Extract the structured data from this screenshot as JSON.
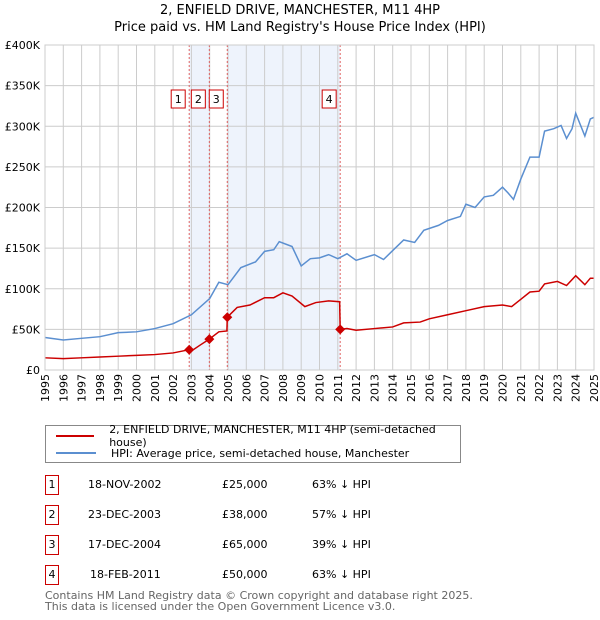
{
  "chart_data": {
    "type": "line",
    "title": "2, ENFIELD DRIVE, MANCHESTER, M11 4HP",
    "subtitle": "Price paid vs. HM Land Registry's House Price Index (HPI)",
    "ylim": [
      0,
      400000
    ],
    "xlim": [
      1995,
      2025
    ],
    "yticks": [
      {
        "v": 0,
        "label": "£0"
      },
      {
        "v": 50000,
        "label": "£50K"
      },
      {
        "v": 100000,
        "label": "£100K"
      },
      {
        "v": 150000,
        "label": "£150K"
      },
      {
        "v": 200000,
        "label": "£200K"
      },
      {
        "v": 250000,
        "label": "£250K"
      },
      {
        "v": 300000,
        "label": "£300K"
      },
      {
        "v": 350000,
        "label": "£350K"
      },
      {
        "v": 400000,
        "label": "£400K"
      }
    ],
    "xticks": [
      "1995",
      "1996",
      "1997",
      "1998",
      "1999",
      "2000",
      "2001",
      "2002",
      "2003",
      "2004",
      "2005",
      "2006",
      "2007",
      "2008",
      "2009",
      "2010",
      "2011",
      "2012",
      "2013",
      "2014",
      "2015",
      "2016",
      "2017",
      "2018",
      "2019",
      "2020",
      "2021",
      "2022",
      "2023",
      "2024",
      "2025"
    ],
    "grid": true,
    "series": [
      {
        "name": "2, ENFIELD DRIVE, MANCHESTER, M11 4HP (semi-detached house)",
        "color": "#cc0000",
        "points": [
          [
            1995,
            15000
          ],
          [
            1996,
            14000
          ],
          [
            1997,
            15000
          ],
          [
            1998,
            16000
          ],
          [
            1999,
            17000
          ],
          [
            2000,
            18000
          ],
          [
            2001,
            19000
          ],
          [
            2002,
            21000
          ],
          [
            2002.88,
            25000
          ],
          [
            2003.1,
            25000
          ],
          [
            2003.5,
            31000
          ],
          [
            2003.98,
            38000
          ],
          [
            2004.5,
            47000
          ],
          [
            2004.94,
            48000
          ],
          [
            2004.96,
            65000
          ],
          [
            2005.5,
            77000
          ],
          [
            2006.2,
            80000
          ],
          [
            2007,
            89000
          ],
          [
            2007.5,
            89000
          ],
          [
            2008,
            95000
          ],
          [
            2008.5,
            91000
          ],
          [
            2009.2,
            78000
          ],
          [
            2009.8,
            83000
          ],
          [
            2010.5,
            85000
          ],
          [
            2011.1,
            84000
          ],
          [
            2011.13,
            50000
          ],
          [
            2011.5,
            51000
          ],
          [
            2012,
            49000
          ],
          [
            2013,
            51000
          ],
          [
            2014,
            53000
          ],
          [
            2014.6,
            58000
          ],
          [
            2015.5,
            59000
          ],
          [
            2016,
            63000
          ],
          [
            2017,
            68000
          ],
          [
            2018,
            73000
          ],
          [
            2019,
            78000
          ],
          [
            2020,
            80000
          ],
          [
            2020.5,
            78000
          ],
          [
            2021,
            87000
          ],
          [
            2021.5,
            96000
          ],
          [
            2022,
            97000
          ],
          [
            2022.3,
            106000
          ],
          [
            2023,
            109000
          ],
          [
            2023.5,
            104000
          ],
          [
            2024,
            116000
          ],
          [
            2024.5,
            105000
          ],
          [
            2024.8,
            113000
          ],
          [
            2025,
            113000
          ]
        ]
      },
      {
        "name": "HPI: Average price, semi-detached house, Manchester",
        "color": "#5b8fd0",
        "points": [
          [
            1995,
            40000
          ],
          [
            1996,
            37000
          ],
          [
            1997,
            39000
          ],
          [
            1998,
            41000
          ],
          [
            1999,
            46000
          ],
          [
            2000,
            47000
          ],
          [
            2001,
            51000
          ],
          [
            2002,
            57000
          ],
          [
            2003,
            68000
          ],
          [
            2004,
            88000
          ],
          [
            2004.5,
            108000
          ],
          [
            2005,
            105000
          ],
          [
            2005.7,
            126000
          ],
          [
            2006.5,
            133000
          ],
          [
            2007,
            146000
          ],
          [
            2007.5,
            148000
          ],
          [
            2007.8,
            158000
          ],
          [
            2008.5,
            152000
          ],
          [
            2009,
            128000
          ],
          [
            2009.5,
            137000
          ],
          [
            2010,
            138000
          ],
          [
            2010.5,
            142000
          ],
          [
            2011,
            137000
          ],
          [
            2011.5,
            143000
          ],
          [
            2012,
            135000
          ],
          [
            2013,
            142000
          ],
          [
            2013.5,
            136000
          ],
          [
            2014,
            147000
          ],
          [
            2014.6,
            160000
          ],
          [
            2015.2,
            157000
          ],
          [
            2015.7,
            172000
          ],
          [
            2016.5,
            178000
          ],
          [
            2017,
            184000
          ],
          [
            2017.7,
            189000
          ],
          [
            2018,
            204000
          ],
          [
            2018.5,
            200000
          ],
          [
            2019,
            213000
          ],
          [
            2019.5,
            215000
          ],
          [
            2020,
            225000
          ],
          [
            2020.3,
            218000
          ],
          [
            2020.6,
            210000
          ],
          [
            2021,
            235000
          ],
          [
            2021.5,
            262000
          ],
          [
            2022,
            262000
          ],
          [
            2022.3,
            294000
          ],
          [
            2022.8,
            297000
          ],
          [
            2023.2,
            301000
          ],
          [
            2023.5,
            285000
          ],
          [
            2023.8,
            297000
          ],
          [
            2024,
            316000
          ],
          [
            2024.5,
            288000
          ],
          [
            2024.8,
            309000
          ],
          [
            2025,
            311000
          ]
        ]
      }
    ],
    "sales": [
      {
        "n": "1",
        "x": 2002.88,
        "price": 25000,
        "date": "18-NOV-2002",
        "price_label": "£25,000",
        "hpi": "63% ↓ HPI"
      },
      {
        "n": "2",
        "x": 2003.98,
        "price": 38000,
        "date": "23-DEC-2003",
        "price_label": "£38,000",
        "hpi": "57% ↓ HPI"
      },
      {
        "n": "3",
        "x": 2004.96,
        "price": 65000,
        "date": "17-DEC-2004",
        "price_label": "£65,000",
        "hpi": "39% ↓ HPI"
      },
      {
        "n": "4",
        "x": 2011.13,
        "price": 50000,
        "date": "18-FEB-2011",
        "price_label": "£50,000",
        "hpi": "63% ↓ HPI"
      }
    ],
    "legend_position": "below"
  },
  "footer": [
    "Contains HM Land Registry data © Crown copyright and database right 2025.",
    "This data is licensed under the Open Government Licence v3.0."
  ]
}
